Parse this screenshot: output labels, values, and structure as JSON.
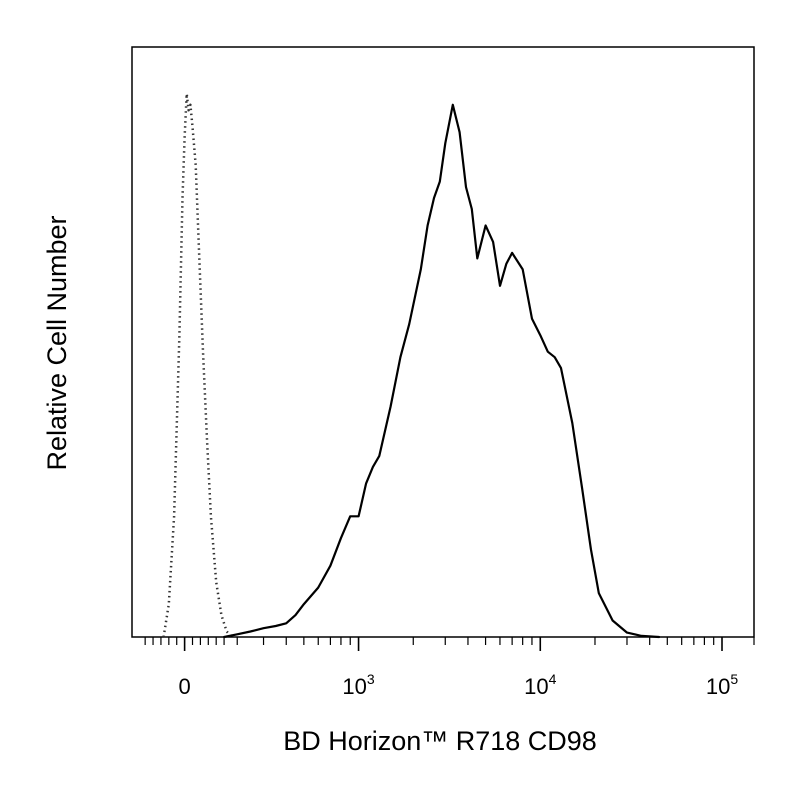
{
  "chart_data": {
    "type": "area",
    "title": "",
    "xlabel": "BD Horizon™ R718 CD98",
    "ylabel": "Relative Cell Number",
    "x_scale": "biexponential",
    "xlim": [
      -200,
      150000
    ],
    "ylim": [
      0,
      1
    ],
    "grid": false,
    "legend": "none",
    "tick_labels": [
      {
        "x": 0,
        "base": "0",
        "exp": ""
      },
      {
        "x": 1000,
        "base": "10",
        "exp": "3"
      },
      {
        "x": 10000,
        "base": "10",
        "exp": "4"
      },
      {
        "x": 100000,
        "base": "10",
        "exp": "5"
      }
    ],
    "major_ticks": [
      0,
      1000,
      10000,
      100000
    ],
    "minor_ticks": [
      -150,
      -120,
      -90,
      -60,
      -30,
      30,
      60,
      90,
      120,
      150,
      200,
      300,
      400,
      500,
      600,
      700,
      800,
      900,
      2000,
      3000,
      4000,
      5000,
      6000,
      7000,
      8000,
      9000,
      20000,
      30000,
      40000,
      50000,
      60000,
      70000,
      80000,
      90000,
      150000
    ],
    "series": [
      {
        "style": "dotted",
        "color": "#333333",
        "x": [
          -80,
          -60,
          -40,
          -20,
          -8,
          0,
          8,
          15,
          22,
          30,
          42,
          55,
          70,
          85,
          100,
          120,
          140,
          160,
          180
        ],
        "y": [
          0.0,
          0.06,
          0.22,
          0.55,
          0.8,
          0.91,
          0.99,
          0.96,
          0.97,
          0.93,
          0.86,
          0.7,
          0.52,
          0.36,
          0.22,
          0.1,
          0.04,
          0.01,
          0.0
        ]
      },
      {
        "style": "solid",
        "color": "#000000",
        "x": [
          150,
          200,
          250,
          300,
          350,
          400,
          450,
          500,
          600,
          700,
          800,
          900,
          1000,
          1100,
          1200,
          1300,
          1500,
          1700,
          1900,
          2200,
          2400,
          2600,
          2800,
          3000,
          3300,
          3600,
          3900,
          4200,
          4500,
          5000,
          5500,
          6000,
          6500,
          7000,
          8000,
          9000,
          10000,
          11000,
          12000,
          13000,
          15000,
          17000,
          19000,
          21000,
          25000,
          30000,
          36000,
          45000
        ],
        "y": [
          0.0,
          0.005,
          0.01,
          0.016,
          0.02,
          0.025,
          0.04,
          0.06,
          0.09,
          0.13,
          0.18,
          0.22,
          0.22,
          0.28,
          0.31,
          0.33,
          0.42,
          0.51,
          0.57,
          0.67,
          0.75,
          0.8,
          0.83,
          0.9,
          0.97,
          0.92,
          0.82,
          0.78,
          0.69,
          0.75,
          0.72,
          0.64,
          0.68,
          0.7,
          0.67,
          0.58,
          0.55,
          0.52,
          0.51,
          0.49,
          0.39,
          0.27,
          0.16,
          0.08,
          0.03,
          0.008,
          0.002,
          0.0
        ]
      }
    ]
  }
}
